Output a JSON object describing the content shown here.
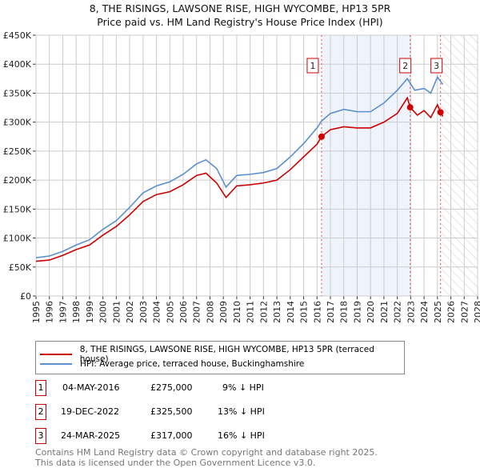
{
  "chart_data": {
    "type": "line",
    "title": "8, THE RISINGS, LAWSONE RISE, HIGH WYCOMBE, HP13 5PR",
    "subtitle": "Price paid vs. HM Land Registry's House Price Index (HPI)",
    "xlim": [
      1995,
      2028
    ],
    "ylim": [
      0,
      450000
    ],
    "x_ticks": [
      "1995",
      "1996",
      "1997",
      "1998",
      "1999",
      "2000",
      "2001",
      "2002",
      "2003",
      "2004",
      "2005",
      "2006",
      "2007",
      "2008",
      "2009",
      "2010",
      "2011",
      "2012",
      "2013",
      "2014",
      "2015",
      "2016",
      "2017",
      "2018",
      "2019",
      "2020",
      "2021",
      "2022",
      "2023",
      "2024",
      "2025",
      "2026",
      "2027",
      "2028"
    ],
    "y_ticks": [
      {
        "v": 0,
        "label": "£0"
      },
      {
        "v": 50000,
        "label": "£50K"
      },
      {
        "v": 100000,
        "label": "£100K"
      },
      {
        "v": 150000,
        "label": "£150K"
      },
      {
        "v": 200000,
        "label": "£200K"
      },
      {
        "v": 250000,
        "label": "£250K"
      },
      {
        "v": 300000,
        "label": "£300K"
      },
      {
        "v": 350000,
        "label": "£350K"
      },
      {
        "v": 400000,
        "label": "£400K"
      },
      {
        "v": 450000,
        "label": "£450K"
      }
    ],
    "grid": true,
    "shaded_range": [
      2016.34,
      2022.96
    ],
    "forecast_hatch_from": 2025.3,
    "series": [
      {
        "name": "8, THE RISINGS, LAWSONE RISE, HIGH WYCOMBE, HP13 5PR (terraced house)",
        "color": "#cc0000",
        "x": [
          1995,
          1996,
          1997,
          1998,
          1999,
          2000,
          2001,
          2002,
          2003,
          2004,
          2005,
          2006,
          2007,
          2007.7,
          2008.5,
          2009.2,
          2010,
          2011,
          2012,
          2013,
          2014,
          2015,
          2016,
          2016.34,
          2017,
          2018,
          2019,
          2020,
          2021,
          2022,
          2022.75,
          2022.96,
          2023.5,
          2024,
          2024.5,
          2025,
          2025.23,
          2025.4
        ],
        "y": [
          60000,
          62000,
          70000,
          80000,
          88000,
          105000,
          120000,
          140000,
          163000,
          175000,
          180000,
          192000,
          208000,
          212000,
          195000,
          170000,
          190000,
          192000,
          195000,
          200000,
          218000,
          240000,
          262000,
          275000,
          287000,
          292000,
          290000,
          290000,
          300000,
          315000,
          342000,
          325500,
          312000,
          320000,
          308000,
          330000,
          317000,
          310000
        ]
      },
      {
        "name": "HPI: Average price, terraced house, Buckinghamshire",
        "color": "#5b8fd0",
        "x": [
          1995,
          1996,
          1997,
          1998,
          1999,
          2000,
          2001,
          2002,
          2003,
          2004,
          2005,
          2006,
          2007,
          2007.7,
          2008.5,
          2009.2,
          2010,
          2011,
          2012,
          2013,
          2014,
          2015,
          2016,
          2016.34,
          2017,
          2018,
          2019,
          2020,
          2021,
          2022,
          2022.75,
          2023.3,
          2024,
          2024.5,
          2025,
          2025.3,
          2025.4
        ],
        "y": [
          66000,
          69000,
          77000,
          88000,
          97000,
          115000,
          130000,
          153000,
          178000,
          190000,
          197000,
          210000,
          228000,
          235000,
          220000,
          188000,
          208000,
          210000,
          213000,
          220000,
          240000,
          263000,
          290000,
          302000,
          315000,
          322000,
          318000,
          318000,
          333000,
          355000,
          375000,
          355000,
          358000,
          350000,
          378000,
          368000,
          365000
        ]
      }
    ],
    "sales": [
      {
        "id": "1",
        "x": 2016.34,
        "y": 275000,
        "date": "04-MAY-2016",
        "price": "£275,000",
        "hpi": "9% ↓ HPI"
      },
      {
        "id": "2",
        "x": 2022.96,
        "y": 325500,
        "date": "19-DEC-2022",
        "price": "£325,500",
        "hpi": "13% ↓ HPI"
      },
      {
        "id": "3",
        "x": 2025.23,
        "y": 317000,
        "date": "24-MAR-2025",
        "price": "£317,000",
        "hpi": "16% ↓ HPI"
      }
    ]
  },
  "legend": {
    "red": "8, THE RISINGS, LAWSONE RISE, HIGH WYCOMBE, HP13 5PR (terraced house)",
    "blue": "HPI: Average price, terraced house, Buckinghamshire"
  },
  "footer": {
    "line1": "Contains HM Land Registry data © Crown copyright and database right 2025.",
    "line2": "This data is licensed under the Open Government Licence v3.0."
  }
}
